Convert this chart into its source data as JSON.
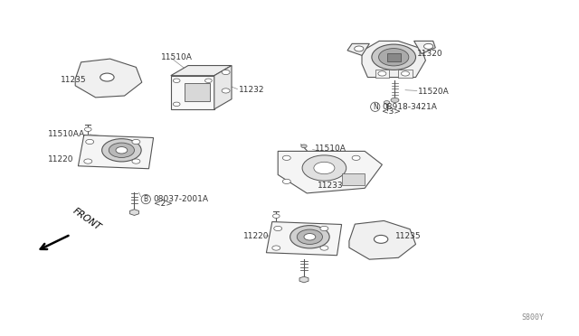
{
  "bg_color": "#ffffff",
  "line_color": "#555555",
  "text_color": "#333333",
  "fig_width": 6.4,
  "fig_height": 3.72,
  "dpi": 100,
  "part_number": "S800Y",
  "labels": {
    "11235_ul": [
      0.175,
      0.755,
      0.13,
      0.76
    ],
    "11510A_ul": [
      0.295,
      0.82,
      0.295,
      0.838
    ],
    "11232": [
      0.43,
      0.745,
      0.465,
      0.735
    ],
    "11510AA": [
      0.155,
      0.6,
      0.085,
      0.605
    ],
    "11220_l": [
      0.175,
      0.548,
      0.09,
      0.53
    ],
    "B_bolt": [
      0.248,
      0.415,
      0.265,
      0.395
    ],
    "11320": [
      0.72,
      0.845,
      0.76,
      0.838
    ],
    "11520A": [
      0.718,
      0.745,
      0.758,
      0.73
    ],
    "N_nut": [
      0.668,
      0.665,
      0.668,
      0.648
    ],
    "11510A_r": [
      0.575,
      0.555,
      0.61,
      0.558
    ],
    "11233": [
      0.57,
      0.468,
      0.575,
      0.45
    ],
    "11220_b": [
      0.465,
      0.31,
      0.455,
      0.295
    ],
    "11235_br": [
      0.685,
      0.31,
      0.72,
      0.298
    ]
  }
}
